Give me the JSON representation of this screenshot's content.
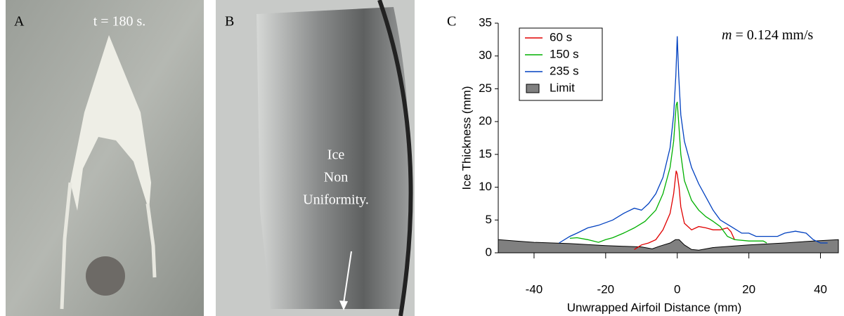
{
  "panels": {
    "a": {
      "letter": "A",
      "caption": "t = 180 s."
    },
    "b": {
      "letter": "B",
      "lines": [
        "Ice",
        "Non",
        "Uniformity."
      ]
    },
    "c": {
      "letter": "C"
    }
  },
  "chart_data": {
    "type": "line",
    "xlabel": "Unwrapped Airfoil Distance (mm)",
    "ylabel": "Ice Thickness (mm)",
    "annotation": {
      "symbol": "m",
      "text": "= 0.124 mm/s"
    },
    "xlim": [
      -50,
      45
    ],
    "ylim": [
      0,
      35
    ],
    "xticks": [
      -40,
      -20,
      0,
      20,
      40
    ],
    "yticks": [
      0,
      5,
      10,
      15,
      20,
      25,
      30,
      35
    ],
    "legend": "upper left",
    "series": [
      {
        "name": "60 s",
        "color": "#e00000",
        "x": [
          -12,
          -10,
          -8,
          -6,
          -4,
          -2,
          -1,
          -0.3,
          0,
          0.5,
          1,
          2,
          4,
          6,
          8,
          10,
          12,
          14,
          15,
          16
        ],
        "values": [
          0.5,
          1.2,
          1.5,
          2,
          3.5,
          6,
          9,
          12.5,
          12,
          10,
          7,
          4.5,
          3.5,
          4,
          3.8,
          3.5,
          3.5,
          3.8,
          3.2,
          2
        ]
      },
      {
        "name": "150 s",
        "color": "#00b000",
        "x": [
          -30,
          -28,
          -25,
          -22,
          -20,
          -18,
          -15,
          -12,
          -9,
          -6,
          -4,
          -2,
          -1,
          -0.3,
          0,
          0.5,
          1,
          2,
          4,
          6,
          8,
          10,
          12,
          14,
          16,
          20,
          24,
          25
        ],
        "values": [
          2.2,
          2.3,
          2,
          1.6,
          2,
          2.3,
          3,
          3.8,
          4.8,
          6.5,
          9,
          13,
          17,
          22.5,
          23,
          19,
          15,
          11,
          8,
          6.5,
          5.5,
          4.8,
          4,
          2.5,
          2,
          1.8,
          1.8,
          1.5
        ]
      },
      {
        "name": "235 s",
        "color": "#0040c0",
        "x": [
          -33,
          -30,
          -28,
          -25,
          -22,
          -18,
          -15,
          -12,
          -10,
          -8,
          -6,
          -4,
          -2,
          -1,
          -0.4,
          0,
          0.4,
          1,
          2,
          3,
          4,
          6,
          8,
          10,
          12,
          15,
          18,
          20,
          22,
          25,
          28,
          30,
          33,
          36,
          38,
          40,
          42
        ],
        "values": [
          1.5,
          2.5,
          3,
          3.8,
          4.2,
          5,
          6,
          6.8,
          6.5,
          7.5,
          9,
          11.5,
          16,
          21,
          27,
          33,
          27,
          21,
          17,
          15,
          13,
          10.5,
          8.5,
          6.5,
          5,
          4,
          3,
          3,
          2.5,
          2.5,
          2.5,
          3,
          3.3,
          3,
          2,
          1.5,
          1.5
        ]
      },
      {
        "name": "Limit",
        "color": "#808080",
        "style": "area",
        "x": [
          -50,
          -45,
          -40,
          -30,
          -20,
          -15,
          -10,
          -7,
          -5,
          -2,
          -0.5,
          0.5,
          2,
          4,
          6,
          10,
          20,
          30,
          38,
          45
        ],
        "values": [
          2,
          1.8,
          1.6,
          1.4,
          1.1,
          1,
          0.9,
          0.6,
          1,
          1.5,
          2,
          2,
          1.2,
          0.5,
          0.4,
          0.8,
          1.2,
          1.5,
          1.8,
          2
        ]
      }
    ]
  }
}
